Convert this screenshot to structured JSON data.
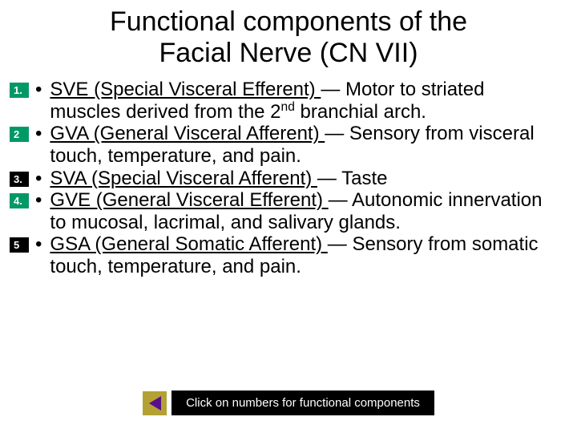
{
  "title_line1": "Functional components of the",
  "title_line2": "Facial Nerve (CN VII)",
  "badges": {
    "bg_green": "#009966",
    "bg_black": "#000000",
    "fg_white": "#ffffff"
  },
  "items": [
    {
      "num": "1.",
      "badge_bg": "#009966",
      "badge_fg": "#ffffff",
      "uline": "SVE (Special Visceral Efferent) ",
      "rest1": "— Motor to striated muscles derived from the 2",
      "sup": "nd",
      "rest2": " branchial arch."
    },
    {
      "num": "2",
      "badge_bg": "#009966",
      "badge_fg": "#ffffff",
      "uline": "GVA (General Visceral Afferent) ",
      "rest1": "— Sensory from visceral touch, temperature, and pain.",
      "sup": "",
      "rest2": ""
    },
    {
      "num": "3.",
      "badge_bg": "#000000",
      "badge_fg": "#ffffff",
      "uline": "SVA (Special Visceral Afferent) ",
      "rest1": "— Taste",
      "sup": "",
      "rest2": ""
    },
    {
      "num": "4.",
      "badge_bg": "#009966",
      "badge_fg": "#ffffff",
      "uline": "GVE (General Visceral Efferent) ",
      "rest1": "— Autonomic innervation to mucosal, lacrimal, and salivary glands.",
      "sup": "",
      "rest2": ""
    },
    {
      "num": "5",
      "badge_bg": "#000000",
      "badge_fg": "#ffffff",
      "uline": "GSA (General Somatic Afferent) ",
      "rest1": "— Sensory from somatic touch, temperature, and pain.",
      "sup": "",
      "rest2": ""
    }
  ],
  "footer_text": "Click on numbers for functional components",
  "triangle": {
    "box_bg": "#b3a233",
    "tri_color": "#5a0f8a"
  }
}
